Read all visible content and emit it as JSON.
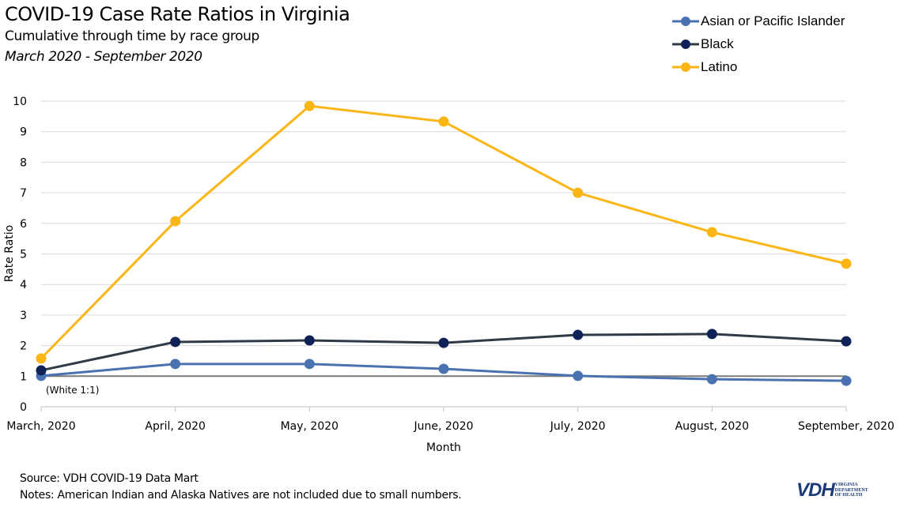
{
  "chart_data": {
    "type": "line",
    "title": "COVID-19 Case Rate Ratios in Virginia",
    "subtitle": "Cumulative through time by race group",
    "date_range": "March 2020 - September 2020",
    "xlabel": "Month",
    "ylabel": "Rate Ratio",
    "ylim": [
      0,
      10
    ],
    "yticks": [
      "0",
      "1",
      "2",
      "3",
      "4",
      "5",
      "6",
      "7",
      "8",
      "9",
      "10"
    ],
    "grid": true,
    "legend_position": "top-right",
    "categories": [
      "March, 2020",
      "April, 2020",
      "May, 2020",
      "June, 2020",
      "July, 2020",
      "August, 2020",
      "September, 2020"
    ],
    "series": [
      {
        "name": "Asian or Pacific Islander",
        "line_color": "#4a72b0",
        "marker_color": "#4a72b0",
        "values": [
          1.01,
          1.4,
          1.4,
          1.24,
          1.01,
          0.9,
          0.85
        ]
      },
      {
        "name": "Black",
        "line_color": "#2e3a45",
        "marker_color": "#0f2257",
        "values": [
          1.19,
          2.12,
          2.17,
          2.09,
          2.35,
          2.38,
          2.14
        ]
      },
      {
        "name": "Latino",
        "line_color": "#fbb515",
        "marker_color": "#fbb515",
        "values": [
          1.58,
          6.07,
          9.84,
          9.33,
          7.0,
          5.71,
          4.68
        ]
      }
    ],
    "reference_line": {
      "value": 1,
      "label": "(White 1:1)",
      "color": "#7a7a7a"
    }
  },
  "footer": {
    "source": "Source: VDH COVID-19 Data Mart",
    "notes": "Notes: American Indian and Alaska Natives are not included due to small numbers."
  },
  "logo": {
    "main": "VDH",
    "line1": "VIRGINIA",
    "line2": "DEPARTMENT",
    "line3": "OF HEALTH"
  }
}
